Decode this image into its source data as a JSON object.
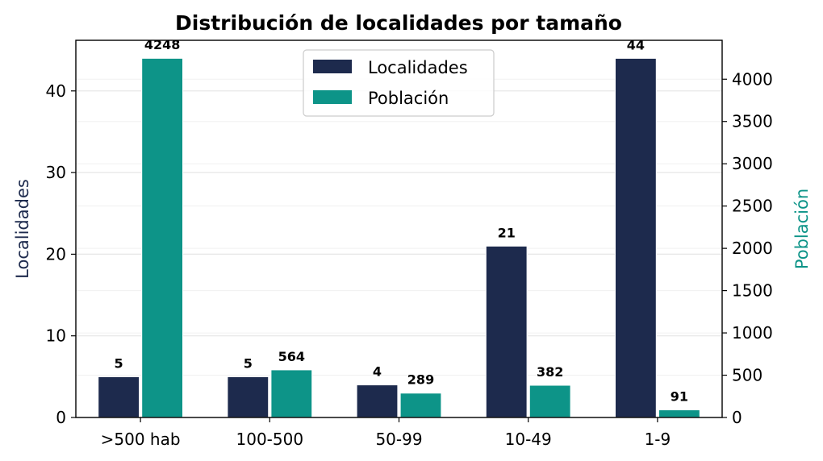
{
  "chart_data": {
    "type": "bar",
    "title": "Distribución de localidades por tamaño",
    "categories": [
      ">500 hab",
      "100-500",
      "50-99",
      "10-49",
      "1-9"
    ],
    "series": [
      {
        "name": "Localidades",
        "axis": "left",
        "color": "#1d2a4d",
        "values": [
          5,
          5,
          4,
          21,
          44
        ]
      },
      {
        "name": "Población",
        "axis": "right",
        "color": "#0d9488",
        "values": [
          4248,
          564,
          289,
          382,
          91
        ]
      }
    ],
    "y_left": {
      "label": "Localidades",
      "label_color": "#1d2a4d",
      "ylim": [
        0,
        46.2
      ],
      "ticks": [
        0,
        10,
        20,
        30,
        40
      ]
    },
    "y_right": {
      "label": "Población",
      "label_color": "#0d9488",
      "ylim": [
        0,
        4460
      ],
      "ticks": [
        0,
        500,
        1000,
        1500,
        2000,
        2500,
        3000,
        3500,
        4000
      ]
    },
    "grid": true,
    "legend": "top-center"
  }
}
